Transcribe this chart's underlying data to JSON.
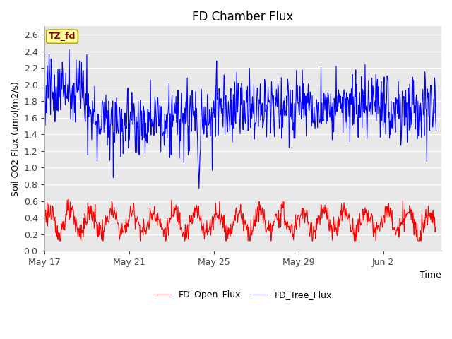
{
  "title": "FD Chamber Flux",
  "xlabel": "Time",
  "ylabel": "Soil CO2 Flux (umol/m2/s)",
  "ylim": [
    0.0,
    2.7
  ],
  "yticks": [
    0.0,
    0.2,
    0.4,
    0.6,
    0.8,
    1.0,
    1.2,
    1.4,
    1.6,
    1.8,
    2.0,
    2.2,
    2.4,
    2.6
  ],
  "bg_color": "#e8e8e8",
  "fig_color": "#ffffff",
  "annotation_text": "TZ_fd",
  "annotation_bg": "#ffff99",
  "annotation_border": "#b8a000",
  "annotation_text_color": "#880000",
  "legend_entries": [
    "FD_Open_Flux",
    "FD_Tree_Flux"
  ],
  "legend_colors": [
    "#ff0000",
    "#0000ff"
  ],
  "title_fontsize": 12,
  "axis_label_fontsize": 9,
  "tick_fontsize": 9,
  "n_points": 800,
  "open_flux_base": 0.35,
  "tree_flux_base": 1.75
}
